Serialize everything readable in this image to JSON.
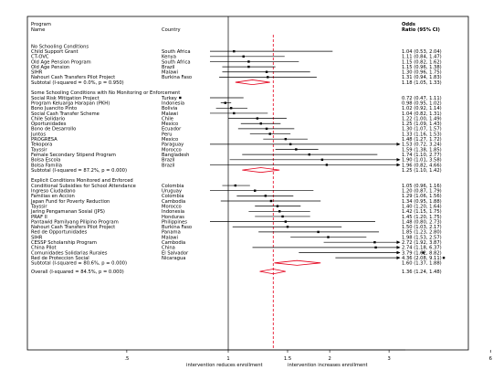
{
  "chart_data": {
    "type": "forest",
    "header": {
      "col_program": "Program",
      "col_program2": "Name",
      "col_country": "Country",
      "col_or": "Odds",
      "col_or2": "Ratio (95% CI)"
    },
    "x_axis": {
      "scale": "log",
      "ticks": [
        ".5",
        "1",
        "1.5",
        "2",
        "3",
        "6"
      ],
      "null_value": 1,
      "overall_line_value": 1.36,
      "label_left": "intervention reduces enrollment",
      "label_right": "intervention increases enrollment"
    },
    "groups": [
      {
        "heading": "No Schooling Conditions",
        "rows": [
          {
            "program": "Child Support Grant",
            "country": "South Africa",
            "or": 1.04,
            "lo": 0.53,
            "hi": 2.04,
            "label": "1.04 (0.53, 2.04)"
          },
          {
            "program": "CT-OVC",
            "country": "Kenya",
            "or": 1.11,
            "lo": 0.84,
            "hi": 1.47,
            "label": "1.11 (0.84, 1.47)"
          },
          {
            "program": "Old Age Pension Program",
            "country": "South Africa",
            "or": 1.15,
            "lo": 0.82,
            "hi": 1.62,
            "label": "1.15 (0.82, 1.62)"
          },
          {
            "program": "Old Age Pension",
            "country": "Brazil",
            "or": 1.15,
            "lo": 0.96,
            "hi": 1.38,
            "label": "1.15 (0.96, 1.38)"
          },
          {
            "program": "SIHR",
            "country": "Malawi",
            "or": 1.3,
            "lo": 0.96,
            "hi": 1.75,
            "label": "1.30 (0.96, 1.75)"
          },
          {
            "program": "Nahouri Cash Transfers Pilot Project",
            "country": "Burkina Faso",
            "or": 1.31,
            "lo": 0.94,
            "hi": 1.83,
            "label": "1.31 (0.94, 1.83)"
          }
        ],
        "subtotal": {
          "text": "Subtotal  (I-squared = 0.0%, p = 0.950)",
          "or": 1.18,
          "lo": 1.05,
          "hi": 1.33,
          "label": "1.18 (1.05, 1.33)"
        }
      },
      {
        "heading": "Some Schooling Conditions with No Monitoring or Enforcement",
        "rows": [
          {
            "program": "Social Risk Mitigation Project",
            "country": "Turkey",
            "or": 0.72,
            "lo": 0.47,
            "hi": 1.11,
            "label": "0.72 (0.47, 1.11)"
          },
          {
            "program": "Program Keluarga Harapan (PKH)",
            "country": "Indonesia",
            "or": 0.98,
            "lo": 0.95,
            "hi": 1.02,
            "label": "0.98 (0.95, 1.02)"
          },
          {
            "program": "Bono Juancito Pinto",
            "country": "Bolivia",
            "or": 1.02,
            "lo": 0.92,
            "hi": 1.14,
            "label": "1.02 (0.92, 1.14)"
          },
          {
            "program": "Social Cash Transfer Scheme",
            "country": "Malawi",
            "or": 1.04,
            "lo": 0.82,
            "hi": 1.31,
            "label": "1.04 (0.82, 1.31)"
          },
          {
            "program": "Chile Solidario",
            "country": "Chile",
            "or": 1.22,
            "lo": 1.0,
            "hi": 1.49,
            "label": "1.22 (1.00, 1.49)"
          },
          {
            "program": "Oportunidades",
            "country": "Mexico",
            "or": 1.25,
            "lo": 1.09,
            "hi": 1.43,
            "label": "1.25 (1.09, 1.43)"
          },
          {
            "program": "Bono de Desarrollo",
            "country": "Ecuador",
            "or": 1.3,
            "lo": 1.07,
            "hi": 1.57,
            "label": "1.30 (1.07, 1.57)"
          },
          {
            "program": "Juntos",
            "country": "Peru",
            "or": 1.33,
            "lo": 1.16,
            "hi": 1.53,
            "label": "1.33 (1.16, 1.53)"
          },
          {
            "program": "PROGRESA",
            "country": "Mexico",
            "or": 1.48,
            "lo": 1.27,
            "hi": 1.72,
            "label": "1.48 (1.27, 1.72)"
          },
          {
            "program": "Tekopora",
            "country": "Paraguay",
            "or": 1.53,
            "lo": 0.72,
            "hi": 3.24,
            "label": "1.53 (0.72, 3.24)"
          },
          {
            "program": "Tayssir",
            "country": "Morocco",
            "or": 1.59,
            "lo": 1.38,
            "hi": 1.85,
            "label": "1.59 (1.38, 1.85)"
          },
          {
            "program": "Female Secondary Stipend Program",
            "country": "Bangladesh",
            "or": 1.74,
            "lo": 1.1,
            "hi": 2.77,
            "label": "1.74 (1.10, 2.77)"
          },
          {
            "program": "Bolsa Escola",
            "country": "Brazil",
            "or": 1.9,
            "lo": 1.01,
            "hi": 3.58,
            "label": "1.90 (1.01, 3.58)"
          },
          {
            "program": "Bolsa Familia",
            "country": "Brazil",
            "or": 1.96,
            "lo": 0.82,
            "hi": 4.66,
            "label": "1.96 (0.82, 4.66)"
          }
        ],
        "subtotal": {
          "text": "Subtotal  (I-squared = 87.2%, p = 0.000)",
          "or": 1.25,
          "lo": 1.1,
          "hi": 1.42,
          "label": "1.25 (1.10, 1.42)"
        }
      },
      {
        "heading": "Explicit Conditions Monitored and Enforced",
        "rows": [
          {
            "program": "Conditional Subsidies for School Attendance",
            "country": "Colombia",
            "or": 1.05,
            "lo": 0.96,
            "hi": 1.16,
            "label": "1.05 (0.96, 1.16)"
          },
          {
            "program": "Ingreso Ciudadano",
            "country": "Uruguay",
            "or": 1.2,
            "lo": 0.87,
            "hi": 1.79,
            "label": "1.20 (0.87, 1.79)"
          },
          {
            "program": "Familias en Accion",
            "country": "Colombia",
            "or": 1.29,
            "lo": 1.06,
            "hi": 1.56,
            "label": "1.29 (1.06, 1.56)"
          },
          {
            "program": "Japan Fund for Poverty Reduction",
            "country": "Cambodia",
            "or": 1.34,
            "lo": 0.95,
            "hi": 1.88,
            "label": "1.34 (0.95, 1.88)"
          },
          {
            "program": "Tayssir",
            "country": "Morocco",
            "or": 1.4,
            "lo": 1.2,
            "hi": 1.64,
            "label": "1.40 (1.20, 1.64)"
          },
          {
            "program": "Jaring Pengamanan Sosial (JPS)",
            "country": "Indonesia",
            "or": 1.42,
            "lo": 1.15,
            "hi": 1.75,
            "label": "1.42 (1.15, 1.75)"
          },
          {
            "program": "PRAF II",
            "country": "Honduras",
            "or": 1.45,
            "lo": 1.2,
            "hi": 1.75,
            "label": "1.45 (1.20, 1.75)"
          },
          {
            "program": "Pantawid Pamilyang Pilipino Program",
            "country": "Philippines",
            "or": 1.48,
            "lo": 0.8,
            "hi": 2.73,
            "label": "1.48 (0.80, 2.73)"
          },
          {
            "program": "Nahouri Cash Transfers Pilot Project",
            "country": "Burkina Faso",
            "or": 1.5,
            "lo": 1.03,
            "hi": 2.17,
            "label": "1.50 (1.03, 2.17)"
          },
          {
            "program": "Red de Opportunidades",
            "country": "Panama",
            "or": 1.85,
            "lo": 1.23,
            "hi": 2.8,
            "label": "1.85 (1.23, 2.80)"
          },
          {
            "program": "SIHR",
            "country": "Malawi",
            "or": 1.98,
            "lo": 1.53,
            "hi": 2.57,
            "label": "1.98 (1.53, 2.57)"
          },
          {
            "program": "CESSP Scholarship Program",
            "country": "Cambodia",
            "or": 2.72,
            "lo": 1.92,
            "hi": 3.87,
            "label": "2.72 (1.92, 3.87)"
          },
          {
            "program": "China Pilot",
            "country": "China",
            "or": 2.74,
            "lo": 1.18,
            "hi": 6.37,
            "label": "2.74 (1.18, 6.37)"
          },
          {
            "program": "Comunidades Solidarias Rurales",
            "country": "El Salvador",
            "or": 3.79,
            "lo": 1.62,
            "hi": 8.82,
            "label": "3.79 (1.62, 8.82)"
          },
          {
            "program": "Red de Proteccion Social",
            "country": "Nicaragua",
            "or": 4.36,
            "lo": 2.08,
            "hi": 9.11,
            "label": "4.36 (2.08, 9.11)"
          }
        ],
        "subtotal": {
          "text": "Subtotal  (I-squared = 80.6%, p = 0.000)",
          "or": 1.6,
          "lo": 1.37,
          "hi": 1.88,
          "label": "1.60 (1.37, 1.88)"
        }
      }
    ],
    "overall": {
      "text": "Overall  (I-squared = 84.5%, p = 0.000)",
      "or": 1.36,
      "lo": 1.24,
      "hi": 1.48,
      "label": "1.36 (1.24, 1.48)"
    },
    "colors": {
      "marker": "#000000",
      "diamond": "#e3001b",
      "overall_line": "#e3001b",
      "frame": "#000000"
    }
  }
}
